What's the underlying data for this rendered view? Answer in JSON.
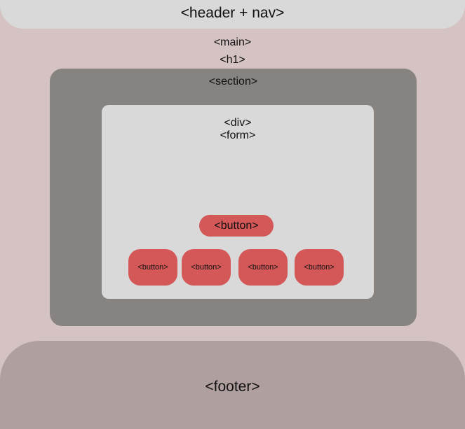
{
  "header": {
    "label": "<header + nav>"
  },
  "main": {
    "label": "<main>"
  },
  "h1": {
    "label": "<h1>"
  },
  "section": {
    "label": "<section>"
  },
  "div": {
    "label": "<div>"
  },
  "form": {
    "label": "<form>"
  },
  "buttons": {
    "primary": "<button>",
    "row": [
      "<button>",
      "<button>",
      "<button>",
      "<button>"
    ]
  },
  "footer": {
    "label": "<footer>"
  },
  "colors": {
    "background": "#d5c2c2",
    "header": "#d9d9d9",
    "section": "#878381",
    "div": "#d9d9d9",
    "button": "#d45858",
    "footer": "#b09f9f"
  }
}
